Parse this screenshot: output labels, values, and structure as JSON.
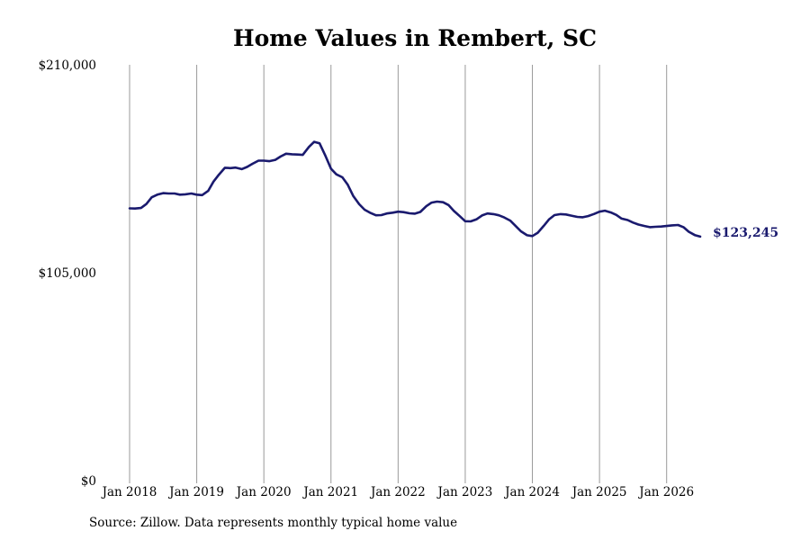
{
  "source_note": "Source: Zillow. Data represents monthly typical home value",
  "colors": {
    "line": "#1a1a6e",
    "grid": "#9a9a9a",
    "text": "#000000"
  },
  "chart_data": {
    "type": "line",
    "title": "Home Values in Rembert, SC",
    "xlabel": "",
    "ylabel": "",
    "ylim": [
      0,
      210000
    ],
    "y_ticks": [
      {
        "value": 0,
        "label": "$0"
      },
      {
        "value": 105000,
        "label": "$105,000"
      },
      {
        "value": 210000,
        "label": "$210,000"
      }
    ],
    "x_ticks": [
      {
        "value": 2018,
        "label": "Jan 2018"
      },
      {
        "value": 2019,
        "label": "Jan 2019"
      },
      {
        "value": 2020,
        "label": "Jan 2020"
      },
      {
        "value": 2021,
        "label": "Jan 2021"
      },
      {
        "value": 2022,
        "label": "Jan 2022"
      },
      {
        "value": 2023,
        "label": "Jan 2023"
      },
      {
        "value": 2024,
        "label": "Jan 2024"
      },
      {
        "value": 2025,
        "label": "Jan 2025"
      },
      {
        "value": 2026,
        "label": "Jan 2026"
      }
    ],
    "xlim": [
      2018,
      2026.5
    ],
    "grid": "vertical",
    "end_label": "$123,245",
    "series": [
      {
        "x": [
          2018.0,
          2018.08,
          2018.17,
          2018.25,
          2018.33,
          2018.42,
          2018.5,
          2018.58,
          2018.67,
          2018.75,
          2018.83,
          2018.92,
          2019.0,
          2019.08,
          2019.17,
          2019.25,
          2019.33,
          2019.42,
          2019.5,
          2019.58,
          2019.67,
          2019.75,
          2019.83,
          2019.92,
          2020.0,
          2020.08,
          2020.17,
          2020.25,
          2020.33,
          2020.42,
          2020.5,
          2020.58,
          2020.67,
          2020.75,
          2020.83,
          2020.92,
          2021.0,
          2021.08,
          2021.17,
          2021.25,
          2021.33,
          2021.42,
          2021.5,
          2021.58,
          2021.67,
          2021.75,
          2021.83,
          2021.92,
          2022.0,
          2022.08,
          2022.17,
          2022.25,
          2022.33,
          2022.42,
          2022.5,
          2022.58,
          2022.67,
          2022.75,
          2022.83,
          2022.92,
          2023.0,
          2023.08,
          2023.17,
          2023.25,
          2023.33,
          2023.42,
          2023.5,
          2023.58,
          2023.67,
          2023.75,
          2023.83,
          2023.92,
          2024.0,
          2024.08,
          2024.17,
          2024.25,
          2024.33,
          2024.42,
          2024.5,
          2024.58,
          2024.67,
          2024.75,
          2024.83,
          2024.92,
          2025.0,
          2025.08,
          2025.17,
          2025.25,
          2025.33,
          2025.42,
          2025.5,
          2025.58,
          2025.67,
          2025.75,
          2025.83,
          2025.92,
          2026.0,
          2026.08,
          2026.17,
          2026.25,
          2026.33,
          2026.42,
          2026.5
        ],
        "values": [
          137500,
          137400,
          137700,
          139700,
          143100,
          144500,
          145200,
          145000,
          145000,
          144400,
          144600,
          145000,
          144400,
          144200,
          146300,
          151000,
          154500,
          158000,
          157800,
          158100,
          157300,
          158400,
          160000,
          161600,
          161600,
          161300,
          162000,
          163700,
          165100,
          164800,
          164700,
          164500,
          168500,
          171100,
          170300,
          163800,
          157500,
          154700,
          153200,
          149400,
          143800,
          139600,
          136800,
          135300,
          134000,
          134100,
          134900,
          135300,
          135800,
          135600,
          135000,
          134800,
          135700,
          138600,
          140400,
          140900,
          140600,
          139200,
          136200,
          133500,
          131000,
          130900,
          132000,
          133900,
          134900,
          134600,
          134000,
          132900,
          131300,
          128600,
          125900,
          123900,
          123500,
          125200,
          128700,
          132000,
          134100,
          134600,
          134400,
          133800,
          133200,
          133000,
          133600,
          134700,
          135800,
          136300,
          135400,
          134200,
          132300,
          131600,
          130300,
          129300,
          128600,
          128000,
          128200,
          128300,
          128600,
          128900,
          129100,
          128000,
          125700,
          124000,
          123245
        ]
      }
    ]
  }
}
